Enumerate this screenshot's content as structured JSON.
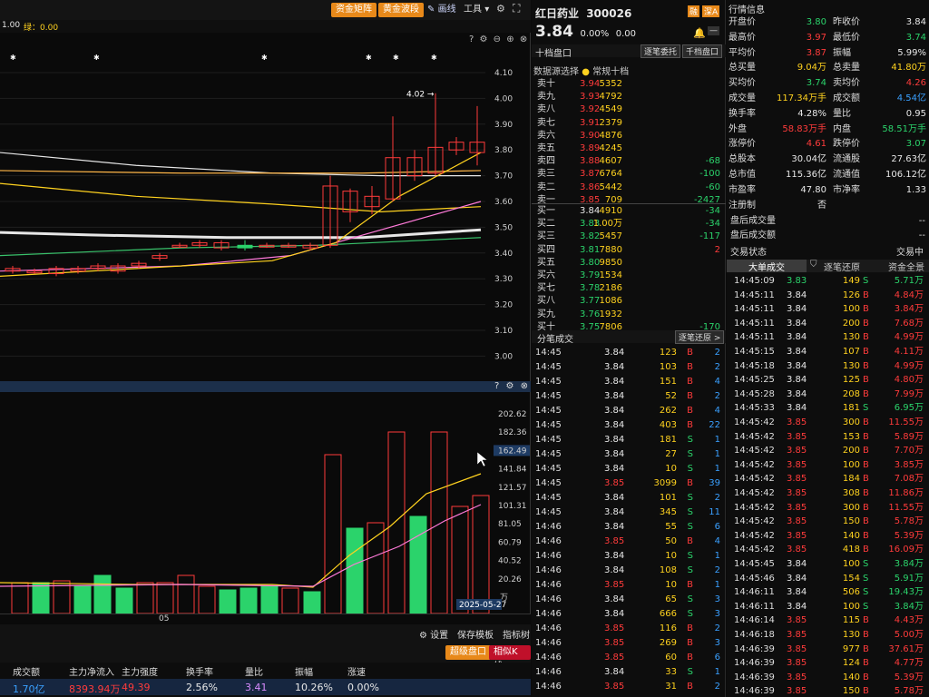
{
  "toolbar": {
    "btn1": "资金矩阵",
    "btn2": "黄金波段",
    "draw": "画线",
    "tools": "工具",
    "badge_lev": "1.00",
    "badge_green": "绿：0.00"
  },
  "kline": {
    "y_ticks": [
      "4.10",
      "4.00",
      "3.90",
      "3.80",
      "3.70",
      "3.60",
      "3.50",
      "3.40",
      "3.30",
      "3.20",
      "3.10",
      "3.00"
    ],
    "peak_label": "4.02",
    "x_label": "05"
  },
  "vol": {
    "y_ticks": [
      "202.62",
      "182.36",
      "162.49",
      "141.84",
      "121.57",
      "101.31",
      "81.05",
      "60.79",
      "40.52",
      "20.26"
    ],
    "unit": "万",
    "date_badge": "2025-05-27"
  },
  "bottom": {
    "settings": "设置",
    "save_template": "保存模板",
    "indicator_tree": "指标树",
    "super_order": "超级盘口",
    "related_kline": "相似K线"
  },
  "stats": {
    "headers": [
      "成交额",
      "主力净流入",
      "主力强度",
      "换手率",
      "量比",
      "振幅",
      "涨速"
    ],
    "values": [
      "1.70亿",
      "8393.94万",
      "49.39",
      "2.56%",
      "3.41",
      "10.26%",
      "0.00%"
    ]
  },
  "stock": {
    "name": "红日药业",
    "code": "300026",
    "price": "3.84",
    "change_pct": "0.00%",
    "change": "0.00",
    "badge1": "融",
    "badge2": "深A"
  },
  "orderbook": {
    "title": "十档盘口",
    "btn_chase": "逐笔委托",
    "btn_thousand": "千档盘口",
    "source_label": "数据源选择",
    "source_value": "常规十档",
    "asks": [
      {
        "label": "卖十",
        "price": "3.94",
        "vol": "5352",
        "chg": ""
      },
      {
        "label": "卖九",
        "price": "3.93",
        "vol": "4792",
        "chg": ""
      },
      {
        "label": "卖八",
        "price": "3.92",
        "vol": "4549",
        "chg": ""
      },
      {
        "label": "卖七",
        "price": "3.91",
        "vol": "2379",
        "chg": ""
      },
      {
        "label": "卖六",
        "price": "3.90",
        "vol": "4876",
        "chg": ""
      },
      {
        "label": "卖五",
        "price": "3.89",
        "vol": "4245",
        "chg": ""
      },
      {
        "label": "卖四",
        "price": "3.88",
        "vol": "4607",
        "chg": "-68"
      },
      {
        "label": "卖三",
        "price": "3.87",
        "vol": "6764",
        "chg": "-100"
      },
      {
        "label": "卖二",
        "price": "3.86",
        "vol": "5442",
        "chg": "-60"
      },
      {
        "label": "卖一",
        "price": "3.85",
        "vol": "709",
        "chg": "-2427"
      }
    ],
    "bids": [
      {
        "label": "买一",
        "price": "3.84",
        "vol": "4910",
        "chg": "-34"
      },
      {
        "label": "买二",
        "price": "3.83",
        "vol": "1.00万",
        "chg": "-34"
      },
      {
        "label": "买三",
        "price": "3.82",
        "vol": "5457",
        "chg": "-117"
      },
      {
        "label": "买四",
        "price": "3.81",
        "vol": "7880",
        "chg": "2"
      },
      {
        "label": "买五",
        "price": "3.80",
        "vol": "9850",
        "chg": ""
      },
      {
        "label": "买六",
        "price": "3.79",
        "vol": "1534",
        "chg": ""
      },
      {
        "label": "买七",
        "price": "3.78",
        "vol": "2186",
        "chg": ""
      },
      {
        "label": "买八",
        "price": "3.77",
        "vol": "1086",
        "chg": ""
      },
      {
        "label": "买九",
        "price": "3.76",
        "vol": "1932",
        "chg": ""
      },
      {
        "label": "买十",
        "price": "3.75",
        "vol": "7806",
        "chg": "-170"
      }
    ]
  },
  "ticks": {
    "title": "分笔成交",
    "btn": "逐笔还原 >",
    "rows": [
      {
        "t": "14:45",
        "p": "3.84",
        "v": "123",
        "s": "B",
        "n": "2"
      },
      {
        "t": "14:45",
        "p": "3.84",
        "v": "103",
        "s": "B",
        "n": "2"
      },
      {
        "t": "14:45",
        "p": "3.84",
        "v": "151",
        "s": "B",
        "n": "4"
      },
      {
        "t": "14:45",
        "p": "3.84",
        "v": "52",
        "s": "B",
        "n": "2"
      },
      {
        "t": "14:45",
        "p": "3.84",
        "v": "262",
        "s": "B",
        "n": "4"
      },
      {
        "t": "14:45",
        "p": "3.84",
        "v": "403",
        "s": "B",
        "n": "22"
      },
      {
        "t": "14:45",
        "p": "3.84",
        "v": "181",
        "s": "S",
        "n": "1"
      },
      {
        "t": "14:45",
        "p": "3.84",
        "v": "27",
        "s": "S",
        "n": "1"
      },
      {
        "t": "14:45",
        "p": "3.84",
        "v": "10",
        "s": "S",
        "n": "1"
      },
      {
        "t": "14:45",
        "p": "3.85",
        "v": "3099",
        "s": "B",
        "n": "39"
      },
      {
        "t": "14:45",
        "p": "3.84",
        "v": "101",
        "s": "S",
        "n": "2"
      },
      {
        "t": "14:45",
        "p": "3.84",
        "v": "345",
        "s": "S",
        "n": "11"
      },
      {
        "t": "14:46",
        "p": "3.84",
        "v": "55",
        "s": "S",
        "n": "6"
      },
      {
        "t": "14:46",
        "p": "3.85",
        "v": "50",
        "s": "B",
        "n": "4"
      },
      {
        "t": "14:46",
        "p": "3.84",
        "v": "10",
        "s": "S",
        "n": "1"
      },
      {
        "t": "14:46",
        "p": "3.84",
        "v": "108",
        "s": "S",
        "n": "2"
      },
      {
        "t": "14:46",
        "p": "3.85",
        "v": "10",
        "s": "B",
        "n": "1"
      },
      {
        "t": "14:46",
        "p": "3.84",
        "v": "65",
        "s": "S",
        "n": "3"
      },
      {
        "t": "14:46",
        "p": "3.84",
        "v": "666",
        "s": "S",
        "n": "3"
      },
      {
        "t": "14:46",
        "p": "3.85",
        "v": "116",
        "s": "B",
        "n": "2"
      },
      {
        "t": "14:46",
        "p": "3.85",
        "v": "269",
        "s": "B",
        "n": "3"
      },
      {
        "t": "14:46",
        "p": "3.85",
        "v": "60",
        "s": "B",
        "n": "6"
      },
      {
        "t": "14:46",
        "p": "3.84",
        "v": "33",
        "s": "S",
        "n": "1"
      },
      {
        "t": "14:46",
        "p": "3.85",
        "v": "31",
        "s": "B",
        "n": "2"
      }
    ]
  },
  "quote": {
    "title": "行情信息",
    "rows": [
      {
        "l1": "开盘价",
        "v1": "3.80",
        "c1": "green",
        "l2": "昨收价",
        "v2": "3.84",
        "c2": "white"
      },
      {
        "l1": "最高价",
        "v1": "3.97",
        "c1": "red",
        "l2": "最低价",
        "v2": "3.74",
        "c2": "green"
      },
      {
        "l1": "平均价",
        "v1": "3.87",
        "c1": "red",
        "l2": "振幅",
        "v2": "5.99%",
        "c2": "white"
      },
      {
        "l1": "总买量",
        "v1": "9.04万",
        "c1": "yellow",
        "l2": "总卖量",
        "v2": "41.80万",
        "c2": "yellow"
      },
      {
        "l1": "买均价",
        "v1": "3.74",
        "c1": "green",
        "l2": "卖均价",
        "v2": "4.26",
        "c2": "red"
      },
      {
        "l1": "成交量",
        "v1": "117.34万手",
        "c1": "yellow",
        "l2": "成交额",
        "v2": "4.54亿",
        "c2": "cyan"
      },
      {
        "l1": "换手率",
        "v1": "4.28%",
        "c1": "white",
        "l2": "量比",
        "v2": "0.95",
        "c2": "white"
      },
      {
        "l1": "外盘",
        "v1": "58.83万手",
        "c1": "red",
        "l2": "内盘",
        "v2": "58.51万手",
        "c2": "green"
      },
      {
        "l1": "涨停价",
        "v1": "4.61",
        "c1": "red",
        "l2": "跌停价",
        "v2": "3.07",
        "c2": "green"
      },
      {
        "l1": "总股本",
        "v1": "30.04亿",
        "c1": "white",
        "l2": "流通股",
        "v2": "27.63亿",
        "c2": "white"
      },
      {
        "l1": "总市值",
        "v1": "115.36亿",
        "c1": "white",
        "l2": "流通值",
        "v2": "106.12亿",
        "c2": "white"
      },
      {
        "l1": "市盈率",
        "v1": "47.80",
        "c1": "white",
        "l2": "市净率",
        "v2": "1.33",
        "c2": "white"
      },
      {
        "l1": "注册制",
        "v1": "否",
        "c1": "white",
        "l2": "",
        "v2": "",
        "c2": "white"
      }
    ],
    "after1_label": "盘后成交量",
    "after1_value": "--",
    "after2_label": "盘后成交额",
    "after2_value": "--",
    "status_label": "交易状态",
    "status_value": "交易中"
  },
  "bigtrades": {
    "tab1": "大单成交",
    "tab2": "逐笔还原",
    "tab3": "资金全景",
    "rows": [
      {
        "t": "14:45:09",
        "p": "3.83",
        "v": "149",
        "s": "S",
        "a": "5.71万"
      },
      {
        "t": "14:45:11",
        "p": "3.84",
        "v": "126",
        "s": "B",
        "a": "4.84万"
      },
      {
        "t": "14:45:11",
        "p": "3.84",
        "v": "100",
        "s": "B",
        "a": "3.84万"
      },
      {
        "t": "14:45:11",
        "p": "3.84",
        "v": "200",
        "s": "B",
        "a": "7.68万"
      },
      {
        "t": "14:45:11",
        "p": "3.84",
        "v": "130",
        "s": "B",
        "a": "4.99万"
      },
      {
        "t": "14:45:15",
        "p": "3.84",
        "v": "107",
        "s": "B",
        "a": "4.11万"
      },
      {
        "t": "14:45:18",
        "p": "3.84",
        "v": "130",
        "s": "B",
        "a": "4.99万"
      },
      {
        "t": "14:45:25",
        "p": "3.84",
        "v": "125",
        "s": "B",
        "a": "4.80万"
      },
      {
        "t": "14:45:28",
        "p": "3.84",
        "v": "208",
        "s": "B",
        "a": "7.99万"
      },
      {
        "t": "14:45:33",
        "p": "3.84",
        "v": "181",
        "s": "S",
        "a": "6.95万"
      },
      {
        "t": "14:45:42",
        "p": "3.85",
        "v": "300",
        "s": "B",
        "a": "11.55万"
      },
      {
        "t": "14:45:42",
        "p": "3.85",
        "v": "153",
        "s": "B",
        "a": "5.89万"
      },
      {
        "t": "14:45:42",
        "p": "3.85",
        "v": "200",
        "s": "B",
        "a": "7.70万"
      },
      {
        "t": "14:45:42",
        "p": "3.85",
        "v": "100",
        "s": "B",
        "a": "3.85万"
      },
      {
        "t": "14:45:42",
        "p": "3.85",
        "v": "184",
        "s": "B",
        "a": "7.08万"
      },
      {
        "t": "14:45:42",
        "p": "3.85",
        "v": "308",
        "s": "B",
        "a": "11.86万"
      },
      {
        "t": "14:45:42",
        "p": "3.85",
        "v": "300",
        "s": "B",
        "a": "11.55万"
      },
      {
        "t": "14:45:42",
        "p": "3.85",
        "v": "150",
        "s": "B",
        "a": "5.78万"
      },
      {
        "t": "14:45:42",
        "p": "3.85",
        "v": "140",
        "s": "B",
        "a": "5.39万"
      },
      {
        "t": "14:45:42",
        "p": "3.85",
        "v": "418",
        "s": "B",
        "a": "16.09万"
      },
      {
        "t": "14:45:45",
        "p": "3.84",
        "v": "100",
        "s": "S",
        "a": "3.84万"
      },
      {
        "t": "14:45:46",
        "p": "3.84",
        "v": "154",
        "s": "S",
        "a": "5.91万"
      },
      {
        "t": "14:46:11",
        "p": "3.84",
        "v": "506",
        "s": "S",
        "a": "19.43万"
      },
      {
        "t": "14:46:11",
        "p": "3.84",
        "v": "100",
        "s": "S",
        "a": "3.84万"
      },
      {
        "t": "14:46:14",
        "p": "3.85",
        "v": "115",
        "s": "B",
        "a": "4.43万"
      },
      {
        "t": "14:46:18",
        "p": "3.85",
        "v": "130",
        "s": "B",
        "a": "5.00万"
      },
      {
        "t": "14:46:39",
        "p": "3.85",
        "v": "977",
        "s": "B",
        "a": "37.61万"
      },
      {
        "t": "14:46:39",
        "p": "3.85",
        "v": "124",
        "s": "B",
        "a": "4.77万"
      },
      {
        "t": "14:46:39",
        "p": "3.85",
        "v": "140",
        "s": "B",
        "a": "5.39万"
      },
      {
        "t": "14:46:39",
        "p": "3.85",
        "v": "150",
        "s": "B",
        "a": "5.78万"
      }
    ]
  },
  "colors": {
    "up": "#ff3b3b",
    "down": "#2bd36b",
    "accent": "#e8891a",
    "ma_yellow": "#ffd21f",
    "ma_white": "#e6e6e6",
    "ma_pink": "#ff7ad9",
    "ma_green": "#39c26b",
    "ma_orange": "#ffb648"
  }
}
